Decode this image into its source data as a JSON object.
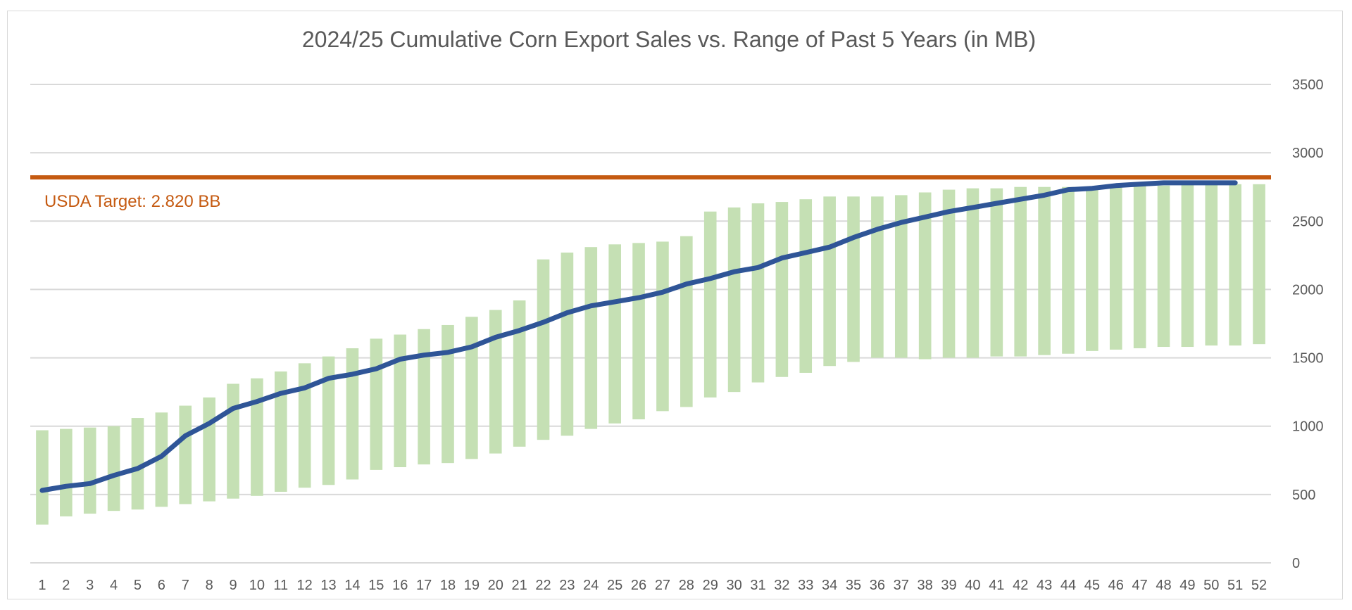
{
  "chart_data": {
    "type": "bar",
    "title": "2024/25 Cumulative Corn Export Sales vs. Range of Past 5 Years (in MB)",
    "xlabel": "",
    "ylabel": "",
    "ylim": [
      0,
      3500
    ],
    "yticks": [
      0,
      500,
      1000,
      1500,
      2000,
      2500,
      3000,
      3500
    ],
    "y_axis_position": "right",
    "grid": true,
    "legend": "none",
    "categories": [
      "1",
      "2",
      "3",
      "4",
      "5",
      "6",
      "7",
      "8",
      "9",
      "10",
      "11",
      "12",
      "13",
      "14",
      "15",
      "16",
      "17",
      "18",
      "19",
      "20",
      "21",
      "22",
      "23",
      "24",
      "25",
      "26",
      "27",
      "28",
      "29",
      "30",
      "31",
      "32",
      "33",
      "34",
      "35",
      "36",
      "37",
      "38",
      "39",
      "40",
      "41",
      "42",
      "43",
      "44",
      "45",
      "46",
      "47",
      "48",
      "49",
      "50",
      "51",
      "52"
    ],
    "range_low": [
      280,
      340,
      360,
      380,
      390,
      410,
      430,
      450,
      470,
      490,
      520,
      550,
      570,
      610,
      680,
      700,
      720,
      730,
      760,
      800,
      850,
      900,
      930,
      980,
      1020,
      1050,
      1110,
      1140,
      1210,
      1250,
      1320,
      1360,
      1390,
      1440,
      1470,
      1500,
      1500,
      1490,
      1500,
      1500,
      1510,
      1510,
      1520,
      1530,
      1550,
      1560,
      1570,
      1580,
      1580,
      1590,
      1590,
      1600
    ],
    "range_high": [
      970,
      980,
      990,
      1000,
      1060,
      1100,
      1150,
      1210,
      1310,
      1350,
      1400,
      1460,
      1510,
      1570,
      1640,
      1670,
      1710,
      1740,
      1800,
      1850,
      1920,
      2220,
      2270,
      2310,
      2330,
      2340,
      2350,
      2390,
      2570,
      2600,
      2630,
      2640,
      2660,
      2680,
      2680,
      2680,
      2690,
      2710,
      2730,
      2740,
      2740,
      2750,
      2750,
      2750,
      2750,
      2760,
      2760,
      2760,
      2770,
      2770,
      2770,
      2770
    ],
    "current": {
      "x": [
        1,
        2,
        3,
        4,
        5,
        6,
        7,
        8,
        9,
        10,
        11,
        12,
        13,
        14,
        15,
        16,
        17,
        18,
        19,
        20,
        21,
        22,
        23,
        24,
        25,
        26,
        27,
        28,
        29,
        30,
        31,
        32,
        33,
        34,
        35,
        36,
        37,
        38,
        39,
        40,
        41,
        42,
        43,
        44,
        45,
        46,
        47,
        48,
        49,
        50,
        51
      ],
      "values": [
        530,
        560,
        580,
        640,
        690,
        780,
        930,
        1020,
        1130,
        1180,
        1240,
        1280,
        1350,
        1380,
        1420,
        1490,
        1520,
        1540,
        1580,
        1650,
        1700,
        1760,
        1830,
        1880,
        1910,
        1940,
        1980,
        2040,
        2080,
        2130,
        2160,
        2230,
        2270,
        2310,
        2380,
        2440,
        2490,
        2530,
        2570,
        2600,
        2630,
        2660,
        2690,
        2730,
        2740,
        2760,
        2770,
        2780,
        2780,
        2780,
        2780
      ]
    },
    "target": {
      "value": 2820,
      "label": "USDA Target: 2.820 BB"
    },
    "colors": {
      "range": "#c5e0b4",
      "current": "#2f5597",
      "target": "#c55a11",
      "grid": "#d9d9d9",
      "text": "#595959"
    }
  }
}
